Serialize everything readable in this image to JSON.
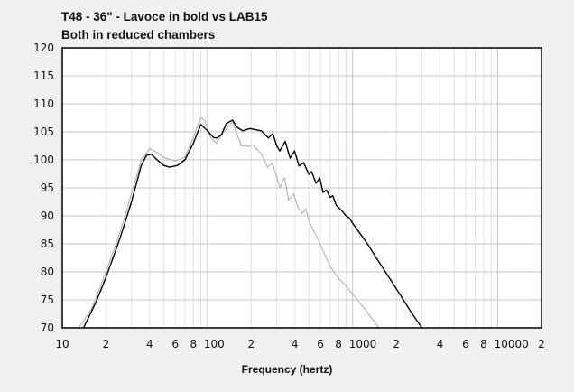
{
  "chart_data": {
    "type": "line",
    "title": "T48 - 36\" - Lavoce in bold vs LAB15",
    "subtitle": "Both in reduced chambers",
    "xlabel": "Frequency (hertz)",
    "ylabel": "",
    "xscale": "log",
    "xlim": [
      10,
      20000
    ],
    "ylim": [
      70,
      120
    ],
    "grid": true,
    "yticks": [
      "70",
      "75",
      "80",
      "85",
      "90",
      "95",
      "100",
      "105",
      "110",
      "115",
      "120"
    ],
    "xticks": [
      {
        "value": 10,
        "label": "10"
      },
      {
        "value": 20,
        "label": "2"
      },
      {
        "value": 40,
        "label": "4"
      },
      {
        "value": 60,
        "label": "6"
      },
      {
        "value": 80,
        "label": "8"
      },
      {
        "value": 100,
        "label": "100"
      },
      {
        "value": 200,
        "label": "2"
      },
      {
        "value": 400,
        "label": "4"
      },
      {
        "value": 600,
        "label": "6"
      },
      {
        "value": 800,
        "label": "8"
      },
      {
        "value": 1000,
        "label": "1000"
      },
      {
        "value": 2000,
        "label": "2"
      },
      {
        "value": 4000,
        "label": "4"
      },
      {
        "value": 6000,
        "label": "6"
      },
      {
        "value": 8000,
        "label": "8"
      },
      {
        "value": 10000,
        "label": "10000"
      },
      {
        "value": 20000,
        "label": "2"
      }
    ],
    "series": [
      {
        "name": "LAB15",
        "color": "#b0b0b0",
        "points": [
          [
            13,
            70
          ],
          [
            16,
            73.5
          ],
          [
            20,
            80
          ],
          [
            25,
            87
          ],
          [
            30,
            94
          ],
          [
            35,
            100
          ],
          [
            40,
            102
          ],
          [
            45,
            101.3
          ],
          [
            50,
            100.4
          ],
          [
            60,
            99.8
          ],
          [
            70,
            100.5
          ],
          [
            80,
            104
          ],
          [
            90,
            107.6
          ],
          [
            96,
            107
          ],
          [
            105,
            104
          ],
          [
            115,
            103
          ],
          [
            128,
            104.8
          ],
          [
            149,
            106.8
          ],
          [
            160,
            104.5
          ],
          [
            172,
            102.5
          ],
          [
            190,
            102.4
          ],
          [
            205,
            102.7
          ],
          [
            235,
            101.1
          ],
          [
            259,
            98.7
          ],
          [
            279,
            99.4
          ],
          [
            300,
            97
          ],
          [
            315,
            95
          ],
          [
            340,
            96.8
          ],
          [
            362,
            92.8
          ],
          [
            393,
            93.9
          ],
          [
            420,
            91.5
          ],
          [
            450,
            90.4
          ],
          [
            475,
            91.3
          ],
          [
            505,
            88.8
          ],
          [
            560,
            86.5
          ],
          [
            620,
            84
          ],
          [
            700,
            81
          ],
          [
            800,
            78.8
          ],
          [
            900,
            77.5
          ],
          [
            1000,
            76
          ],
          [
            1200,
            73.5
          ],
          [
            1520,
            70
          ]
        ]
      },
      {
        "name": "T48 Lavoce",
        "color": "#000000",
        "points": [
          [
            14,
            70
          ],
          [
            17,
            74.5
          ],
          [
            20,
            79
          ],
          [
            25,
            86
          ],
          [
            30,
            92.5
          ],
          [
            35,
            99
          ],
          [
            38,
            100.8
          ],
          [
            41,
            101
          ],
          [
            45,
            100
          ],
          [
            50,
            99
          ],
          [
            55,
            98.7
          ],
          [
            62,
            99
          ],
          [
            70,
            100
          ],
          [
            80,
            103
          ],
          [
            90,
            106.3
          ],
          [
            100,
            105.2
          ],
          [
            110,
            104
          ],
          [
            116,
            103.9
          ],
          [
            125,
            104.5
          ],
          [
            135,
            106.5
          ],
          [
            149,
            107.1
          ],
          [
            160,
            105.8
          ],
          [
            175,
            105.2
          ],
          [
            196,
            105.6
          ],
          [
            235,
            105.2
          ],
          [
            263,
            103.9
          ],
          [
            282,
            104.7
          ],
          [
            300,
            102.5
          ],
          [
            315,
            101.6
          ],
          [
            343,
            103.3
          ],
          [
            371,
            100.3
          ],
          [
            398,
            101.6
          ],
          [
            427,
            98.9
          ],
          [
            459,
            99.5
          ],
          [
            500,
            97.4
          ],
          [
            522,
            97.9
          ],
          [
            560,
            95.8
          ],
          [
            594,
            96.8
          ],
          [
            625,
            94.2
          ],
          [
            660,
            94.6
          ],
          [
            700,
            93.3
          ],
          [
            730,
            93.6
          ],
          [
            772,
            91.9
          ],
          [
            850,
            90.8
          ],
          [
            900,
            90
          ],
          [
            950,
            89.6
          ],
          [
            1000,
            88.7
          ],
          [
            1250,
            85.2
          ],
          [
            1500,
            82
          ],
          [
            2000,
            77
          ],
          [
            2500,
            73
          ],
          [
            3000,
            70
          ]
        ]
      }
    ]
  }
}
